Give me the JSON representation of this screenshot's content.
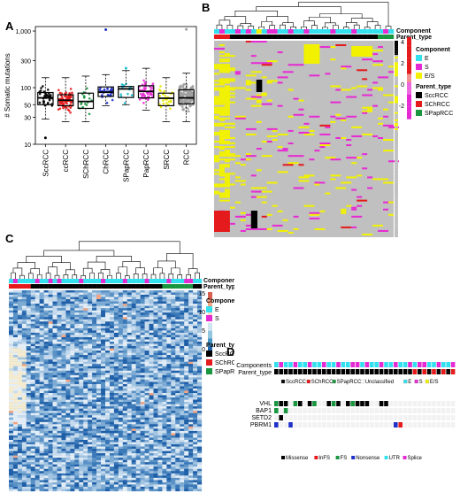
{
  "panels": {
    "a": {
      "label": "A"
    },
    "b": {
      "label": "B"
    },
    "c": {
      "label": "C"
    },
    "d": {
      "label": "D"
    }
  },
  "chart_data": [
    {
      "panel": "A",
      "type": "box",
      "ylabel": "# Somatic mutations",
      "yscale": "log",
      "ylim": [
        10,
        1200
      ],
      "yticks": [
        10,
        30,
        50,
        100,
        300,
        1000
      ],
      "ytick_labels": [
        "10",
        "30",
        "50",
        "100",
        "300",
        "1,000"
      ],
      "categories": [
        "SccRCC",
        "ccRCC",
        "SChRCC",
        "ChRCC",
        "SPapRCC",
        "PapRCC",
        "SRCC",
        "RCC"
      ],
      "colors": [
        "#000000",
        "#e41a1c",
        "#1a9641",
        "#1f30c8",
        "#17becf",
        "#e62ad3",
        "#e6e600",
        "#9e9e9e"
      ],
      "boxes": [
        {
          "min": 28,
          "q1": 50,
          "median": 66,
          "q3": 82,
          "max": 150
        },
        {
          "min": 25,
          "q1": 48,
          "median": 60,
          "q3": 75,
          "max": 150
        },
        {
          "min": 25,
          "q1": 43,
          "median": 57,
          "q3": 80,
          "max": 160
        },
        {
          "min": 48,
          "q1": 70,
          "median": 83,
          "q3": 103,
          "max": 170
        },
        {
          "min": 50,
          "q1": 67,
          "median": 95,
          "q3": 105,
          "max": 200
        },
        {
          "min": 40,
          "q1": 66,
          "median": 86,
          "q3": 108,
          "max": 220
        },
        {
          "min": 25,
          "q1": 48,
          "median": 65,
          "q3": 80,
          "max": 150
        },
        {
          "min": 25,
          "q1": 52,
          "median": 66,
          "q3": 92,
          "max": 180
        }
      ],
      "outliers": [
        [
          0,
          13
        ],
        [
          3,
          1060
        ],
        [
          7,
          1070
        ],
        [
          4,
          220
        ]
      ]
    },
    {
      "panel": "B",
      "type": "heatmap",
      "annotation_rows": [
        "Component",
        "Parent_type"
      ],
      "colorbar_ticks": [
        4,
        2,
        0,
        -2
      ],
      "legend": {
        "component_title": "Component",
        "component_items": [
          {
            "label": "E",
            "color": "#33e0ee"
          },
          {
            "label": "S",
            "color": "#e62ad3"
          },
          {
            "label": "E/S",
            "color": "#f2f200"
          }
        ],
        "parent_title": "Parent_type",
        "parent_items": [
          {
            "label": "SccRCC",
            "color": "#000000"
          },
          {
            "label": "SChRCC",
            "color": "#e41a1c"
          },
          {
            "label": "SPapRCC",
            "color": "#1a9641"
          }
        ]
      },
      "cell_colors": {
        "background": "#c0c0c0",
        "gain": "#f2f200",
        "loss": "#e62ad3",
        "strong": "#e41a1c",
        "black": "#000000"
      }
    },
    {
      "panel": "C",
      "type": "heatmap",
      "annotation_rows": [
        "Component",
        "Parent_type"
      ],
      "colorbar_ticks": [
        15,
        10,
        5,
        0
      ],
      "legend": {
        "component_title": "Component",
        "component_items": [
          {
            "label": "E",
            "color": "#33e0ee"
          },
          {
            "label": "S",
            "color": "#e62ad3"
          }
        ],
        "parent_title": "Parent_type",
        "parent_items": [
          {
            "label": "SccRCC",
            "color": "#000000"
          },
          {
            "label": "SChRCC",
            "color": "#e41a1c"
          },
          {
            "label": "SPapRCC",
            "color": "#1a9641"
          }
        ]
      }
    },
    {
      "panel": "D",
      "type": "oncoprint",
      "rows": [
        "Components",
        "Parent_type"
      ],
      "genes": [
        "VHL",
        "BAP1",
        "SETD2",
        "PBRM1"
      ],
      "type_legend": [
        {
          "label": "SccRCC",
          "color": "#000000"
        },
        {
          "label": "SChRCC",
          "color": "#e41a1c"
        },
        {
          "label": "SPapRCC",
          "color": "#1a9641"
        },
        {
          "label": "Unclassified",
          "color": "#ffffff"
        },
        {
          "label": "E",
          "color": "#33e0ee"
        },
        {
          "label": "S",
          "color": "#e62ad3"
        },
        {
          "label": "E/S",
          "color": "#f2f200"
        }
      ],
      "mutation_legend": [
        {
          "label": "Missense",
          "color": "#000000"
        },
        {
          "label": "InFS",
          "color": "#e41a1c"
        },
        {
          "label": "FS",
          "color": "#1a9641"
        },
        {
          "label": "Nonsense",
          "color": "#1f30c8"
        },
        {
          "label": "UTR",
          "color": "#33e0ee"
        },
        {
          "label": "Splice",
          "color": "#e62ad3"
        }
      ]
    }
  ]
}
